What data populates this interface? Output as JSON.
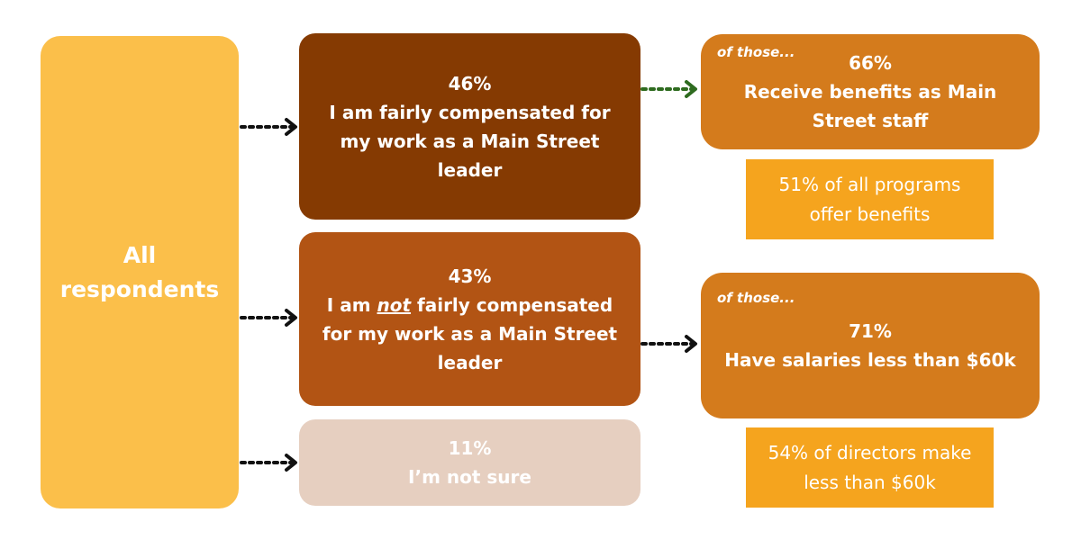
{
  "all": {
    "line1": "All",
    "line2": "respondents"
  },
  "responses": [
    {
      "percent": "46%",
      "line1": "I am fairly compensated for",
      "line2": "my work as a Main Street",
      "line3": "leader"
    },
    {
      "percent": "43%",
      "line1_pre": "I am ",
      "line1_em": "not",
      "line1_post": " fairly compensated",
      "line2": "for my work as a Main Street",
      "line3": "leader"
    },
    {
      "percent": "11%",
      "line1": "I’m not sure"
    }
  ],
  "followups": [
    {
      "of_those": "of those...",
      "percent": "66%",
      "line1": "Receive benefits as Main",
      "line2": "Street staff"
    },
    {
      "of_those": "of those...",
      "percent": "71%",
      "line1": "Have salaries less than $60k"
    }
  ],
  "notes": [
    {
      "line1": "51% of all programs",
      "line2": "offer benefits"
    },
    {
      "line1": "54% of directors make",
      "line2": "less than $60k"
    }
  ],
  "colors": {
    "all": "#FBBF4A",
    "fair": "#853A02",
    "not_fair": "#B25414",
    "not_sure": "#E6CFC0",
    "followup": "#D47B1C",
    "note": "#F5A41E",
    "arrow_black": "#111111",
    "arrow_green": "#2E6B1F"
  }
}
